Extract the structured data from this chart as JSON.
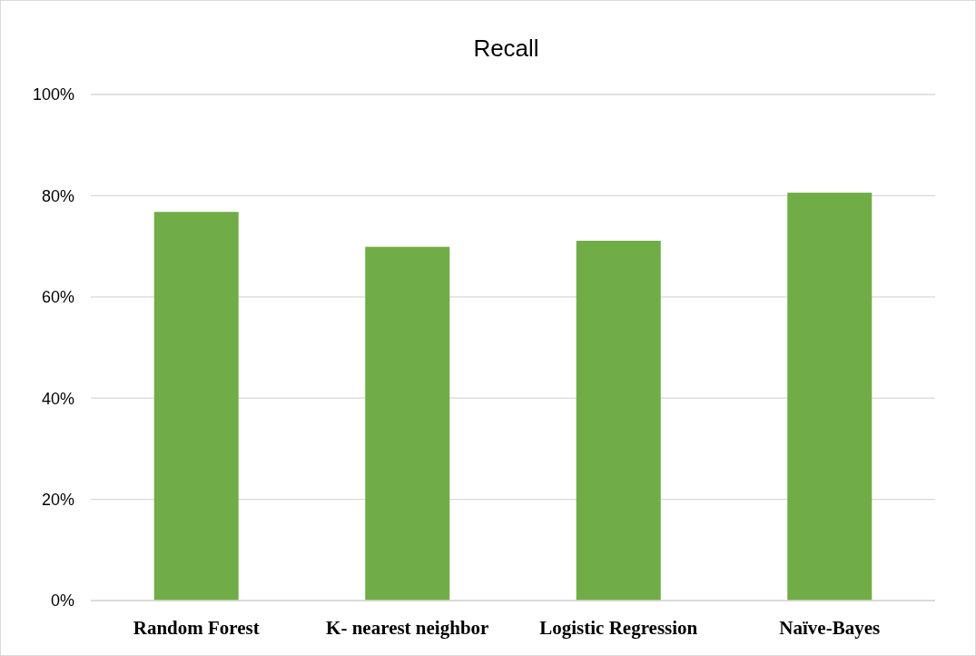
{
  "chart_data": {
    "type": "bar",
    "title": "Recall",
    "categories": [
      "Random Forest",
      "K- nearest neighbor",
      "Logistic Regression",
      "Naïve-Bayes"
    ],
    "values": [
      76.8,
      69.9,
      71.1,
      80.6
    ],
    "color": "#70ad47",
    "ylim": [
      0,
      100
    ],
    "yticks": [
      {
        "value": 0,
        "label": "0%"
      },
      {
        "value": 20,
        "label": "20%"
      },
      {
        "value": 40,
        "label": "40%"
      },
      {
        "value": 60,
        "label": "60%"
      },
      {
        "value": 80,
        "label": "80%"
      },
      {
        "value": 100,
        "label": "100%"
      }
    ],
    "grid": "y"
  }
}
